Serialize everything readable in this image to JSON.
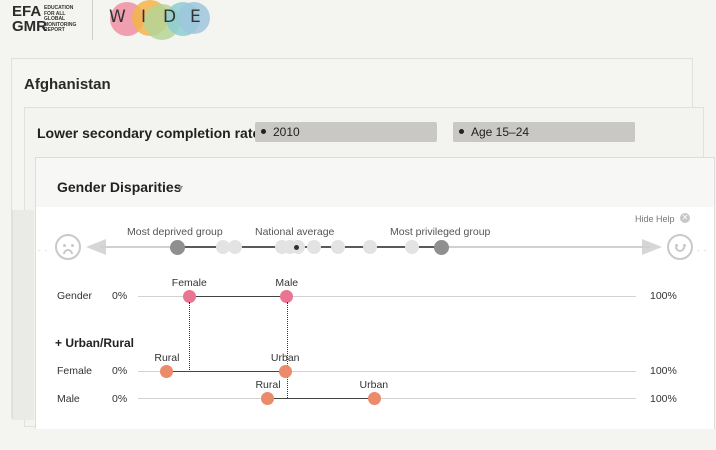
{
  "header": {
    "efa_logo_big": "EFA\nGMR",
    "efa_logo_small": [
      "EDUCATION",
      "FOR ALL",
      "GLOBAL",
      "MONITORING",
      "REPORT"
    ],
    "wide_letters": [
      "W",
      "I",
      "D",
      "E"
    ],
    "wide_colors": [
      "#e8829a",
      "#f2b347",
      "#a9cf8e",
      "#7fc4c9"
    ]
  },
  "country": "Afghanistan",
  "indicator": {
    "title": "Lower secondary completion rate",
    "year": "2010",
    "age": "Age 15–24"
  },
  "panel": {
    "title": "Gender Disparities",
    "hide_help": "Hide Help",
    "close_icon": "close-icon"
  },
  "scale": {
    "most_deprived": "Most deprived group",
    "national_average": "National average",
    "most_privileged": "Most privileged group",
    "sad_icon": "sad-face-icon",
    "happy_icon": "happy-face-icon"
  },
  "rows": {
    "gender": {
      "label": "Gender",
      "min": "0%",
      "max": "100%",
      "female_label": "Female",
      "male_label": "Male",
      "female_value": 10.3,
      "male_value": 29.9
    },
    "urban_rural_section": "+ Urban/Rural",
    "female": {
      "label": "Female",
      "min": "0%",
      "max": "100%",
      "rural_label": "Rural",
      "urban_label": "Urban",
      "rural_value": 5.8,
      "urban_value": 29.6
    },
    "male": {
      "label": "Male",
      "min": "0%",
      "max": "100%",
      "rural_label": "Rural",
      "urban_label": "Urban",
      "rural_value": 26.1,
      "urban_value": 47.4
    }
  },
  "colors": {
    "gender_dot": "#e97593",
    "location_dot": "#ec8a6c"
  }
}
